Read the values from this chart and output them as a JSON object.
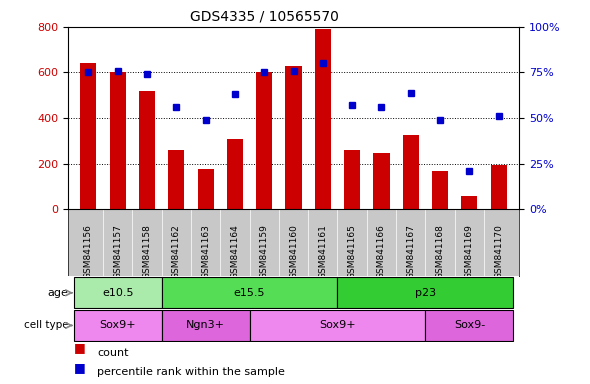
{
  "title": "GDS4335 / 10565570",
  "samples": [
    "GSM841156",
    "GSM841157",
    "GSM841158",
    "GSM841162",
    "GSM841163",
    "GSM841164",
    "GSM841159",
    "GSM841160",
    "GSM841161",
    "GSM841165",
    "GSM841166",
    "GSM841167",
    "GSM841168",
    "GSM841169",
    "GSM841170"
  ],
  "counts": [
    640,
    600,
    520,
    260,
    175,
    310,
    600,
    630,
    790,
    260,
    245,
    325,
    170,
    60,
    195
  ],
  "percentiles": [
    75,
    76,
    74,
    56,
    49,
    63,
    75,
    76,
    80,
    57,
    56,
    64,
    49,
    21,
    51
  ],
  "ylim_left": [
    0,
    800
  ],
  "ylim_right": [
    0,
    100
  ],
  "yticks_left": [
    0,
    200,
    400,
    600,
    800
  ],
  "yticks_right": [
    0,
    25,
    50,
    75,
    100
  ],
  "yticklabels_right": [
    "0%",
    "25%",
    "50%",
    "75%",
    "100%"
  ],
  "bar_color": "#cc0000",
  "dot_color": "#0000cc",
  "xlabels_bg": "#c8c8c8",
  "age_groups": [
    {
      "label": "e10.5",
      "start": 0,
      "end": 3,
      "color": "#aaeaaa"
    },
    {
      "label": "e15.5",
      "start": 3,
      "end": 9,
      "color": "#55dd55"
    },
    {
      "label": "p23",
      "start": 9,
      "end": 15,
      "color": "#33cc33"
    }
  ],
  "cell_type_groups": [
    {
      "label": "Sox9+",
      "start": 0,
      "end": 3,
      "color": "#ee88ee"
    },
    {
      "label": "Ngn3+",
      "start": 3,
      "end": 6,
      "color": "#dd66dd"
    },
    {
      "label": "Sox9+",
      "start": 6,
      "end": 12,
      "color": "#ee88ee"
    },
    {
      "label": "Sox9-",
      "start": 12,
      "end": 15,
      "color": "#dd66dd"
    }
  ],
  "legend_count_label": "count",
  "legend_pct_label": "percentile rank within the sample"
}
